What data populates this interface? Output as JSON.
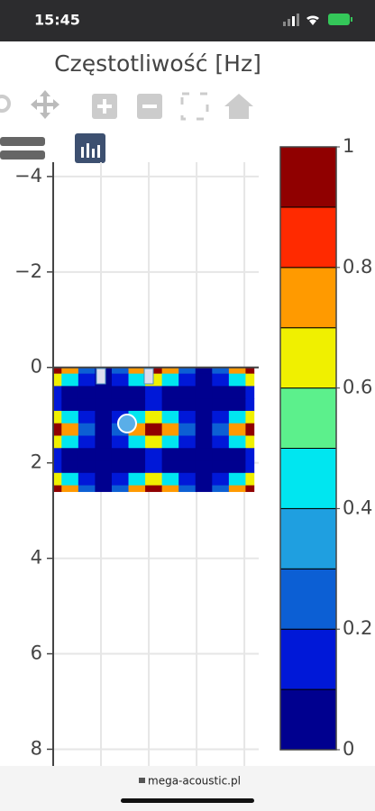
{
  "status_bar": {
    "time": "15:45"
  },
  "chart_data": {
    "type": "contour",
    "title": "Częstotliwość [Hz]",
    "x": [
      0,
      0.35,
      0.7,
      1.05,
      1.4,
      1.75,
      2.1,
      2.45,
      2.8,
      3.15,
      3.5,
      3.85,
      4.2
    ],
    "y": [
      0,
      0.26,
      0.52,
      0.78,
      1.04,
      1.3,
      1.56,
      1.82,
      2.08,
      2.34,
      2.6
    ],
    "z": [
      [
        1,
        0.75,
        0.25,
        0,
        0.25,
        0.75,
        1,
        0.75,
        0.25,
        0,
        0.25,
        0.75,
        1
      ],
      [
        0.65,
        0.49,
        0.16,
        0,
        0.16,
        0.49,
        0.65,
        0.49,
        0.16,
        0,
        0.16,
        0.49,
        0.65
      ],
      [
        0.1,
        0.07,
        0.02,
        0,
        0.02,
        0.07,
        0.1,
        0.07,
        0.02,
        0,
        0.02,
        0.07,
        0.1
      ],
      [
        0.1,
        0.07,
        0.02,
        0,
        0.02,
        0.07,
        0.1,
        0.07,
        0.02,
        0,
        0.02,
        0.07,
        0.1
      ],
      [
        0.65,
        0.49,
        0.16,
        0,
        0.16,
        0.49,
        0.65,
        0.49,
        0.16,
        0,
        0.16,
        0.49,
        0.65
      ],
      [
        1,
        0.75,
        0.25,
        0,
        0.25,
        0.75,
        1,
        0.75,
        0.25,
        0,
        0.25,
        0.75,
        1
      ],
      [
        0.65,
        0.49,
        0.16,
        0,
        0.16,
        0.49,
        0.65,
        0.49,
        0.16,
        0,
        0.16,
        0.49,
        0.65
      ],
      [
        0.1,
        0.07,
        0.02,
        0,
        0.02,
        0.07,
        0.1,
        0.07,
        0.02,
        0,
        0.02,
        0.07,
        0.1
      ],
      [
        0.1,
        0.07,
        0.02,
        0,
        0.02,
        0.07,
        0.1,
        0.07,
        0.02,
        0,
        0.02,
        0.07,
        0.1
      ],
      [
        0.65,
        0.49,
        0.16,
        0,
        0.16,
        0.49,
        0.65,
        0.49,
        0.16,
        0,
        0.16,
        0.49,
        0.65
      ],
      [
        1,
        0.75,
        0.25,
        0,
        0.25,
        0.75,
        1,
        0.75,
        0.25,
        0,
        0.25,
        0.75,
        1
      ]
    ],
    "xlim": [
      0,
      4.3
    ],
    "ylim": [
      -4.3,
      8.35
    ],
    "y_reversed": true,
    "xgrid": [
      1,
      2,
      3,
      4
    ],
    "yticks": [
      {
        "value": -4,
        "label": "−4"
      },
      {
        "value": -2,
        "label": "−2"
      },
      0,
      2,
      4,
      6,
      8
    ],
    "zlim": [
      0,
      1
    ],
    "colorscale": [
      "#00008f",
      "#0018d8",
      "#0c5fd4",
      "#1f9fe0",
      "#00e6f0",
      "#5cf08c",
      "#f0f000",
      "#ff9a00",
      "#ff2a00",
      "#900000"
    ],
    "colorbar_ticks": [
      0,
      0.2,
      0.4,
      0.6,
      0.8,
      1
    ]
  },
  "url": "mega-acoustic.pl"
}
